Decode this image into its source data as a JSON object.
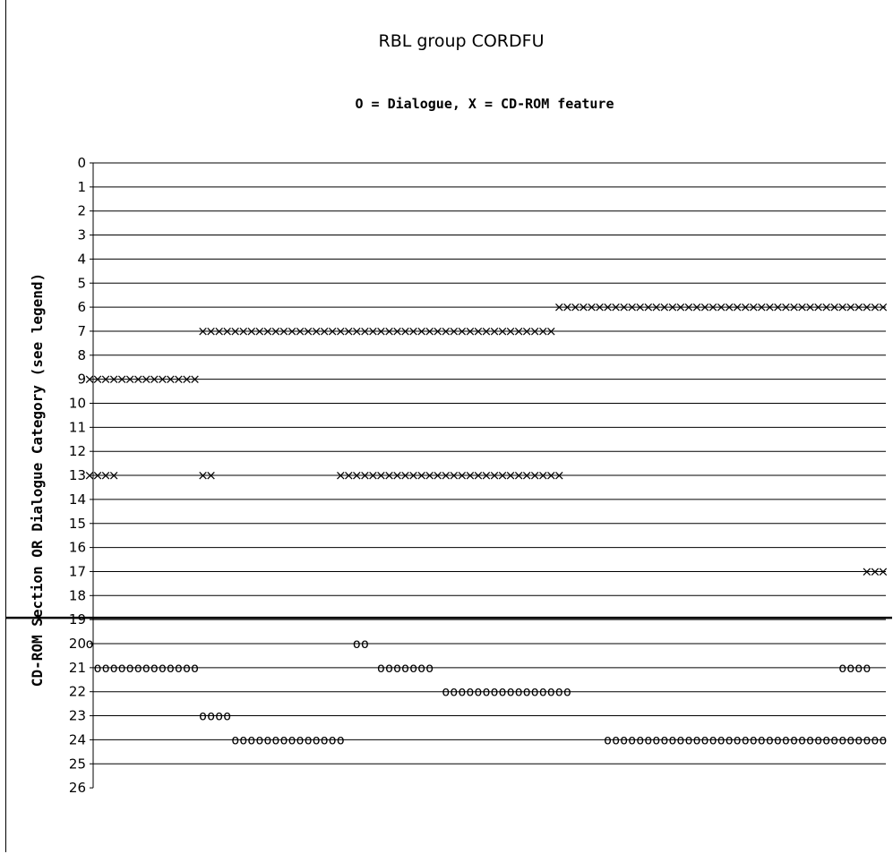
{
  "chart_data": {
    "type": "scatter",
    "title": "RBL group CORDFU",
    "subtitle": "O = Dialogue, X = CD-ROM feature",
    "ylabel": "CD-ROM Section OR Dialogue Category (see legend)",
    "xlabel": "",
    "y_reversed": true,
    "ylim": [
      0,
      26
    ],
    "yticks": [
      0,
      1,
      2,
      3,
      4,
      5,
      6,
      7,
      8,
      9,
      10,
      11,
      12,
      13,
      14,
      15,
      16,
      17,
      18,
      19,
      20,
      21,
      22,
      23,
      24,
      25,
      26
    ],
    "grid": true,
    "divider_y": 19,
    "xlim": [
      0,
      98
    ],
    "series": [
      {
        "name": "X = CD-ROM feature",
        "marker": "x",
        "points": [
          [
            0,
            9
          ],
          [
            1,
            9
          ],
          [
            2,
            9
          ],
          [
            3,
            9
          ],
          [
            4,
            9
          ],
          [
            5,
            9
          ],
          [
            6,
            9
          ],
          [
            7,
            9
          ],
          [
            8,
            9
          ],
          [
            9,
            9
          ],
          [
            10,
            9
          ],
          [
            11,
            9
          ],
          [
            12,
            9
          ],
          [
            13,
            9
          ],
          [
            14,
            7
          ],
          [
            15,
            7
          ],
          [
            16,
            7
          ],
          [
            17,
            7
          ],
          [
            18,
            7
          ],
          [
            19,
            7
          ],
          [
            20,
            7
          ],
          [
            21,
            7
          ],
          [
            22,
            7
          ],
          [
            23,
            7
          ],
          [
            24,
            7
          ],
          [
            25,
            7
          ],
          [
            26,
            7
          ],
          [
            27,
            7
          ],
          [
            28,
            7
          ],
          [
            29,
            7
          ],
          [
            30,
            7
          ],
          [
            31,
            7
          ],
          [
            32,
            7
          ],
          [
            33,
            7
          ],
          [
            34,
            7
          ],
          [
            35,
            7
          ],
          [
            36,
            7
          ],
          [
            37,
            7
          ],
          [
            38,
            7
          ],
          [
            39,
            7
          ],
          [
            40,
            7
          ],
          [
            41,
            7
          ],
          [
            42,
            7
          ],
          [
            43,
            7
          ],
          [
            44,
            7
          ],
          [
            45,
            7
          ],
          [
            46,
            7
          ],
          [
            47,
            7
          ],
          [
            48,
            7
          ],
          [
            49,
            7
          ],
          [
            50,
            7
          ],
          [
            51,
            7
          ],
          [
            52,
            7
          ],
          [
            53,
            7
          ],
          [
            54,
            7
          ],
          [
            55,
            7
          ],
          [
            56,
            7
          ],
          [
            57,
            7
          ],
          [
            58,
            6
          ],
          [
            59,
            6
          ],
          [
            60,
            6
          ],
          [
            61,
            6
          ],
          [
            62,
            6
          ],
          [
            63,
            6
          ],
          [
            64,
            6
          ],
          [
            65,
            6
          ],
          [
            66,
            6
          ],
          [
            67,
            6
          ],
          [
            68,
            6
          ],
          [
            69,
            6
          ],
          [
            70,
            6
          ],
          [
            71,
            6
          ],
          [
            72,
            6
          ],
          [
            73,
            6
          ],
          [
            74,
            6
          ],
          [
            75,
            6
          ],
          [
            76,
            6
          ],
          [
            77,
            6
          ],
          [
            78,
            6
          ],
          [
            79,
            6
          ],
          [
            80,
            6
          ],
          [
            81,
            6
          ],
          [
            82,
            6
          ],
          [
            83,
            6
          ],
          [
            84,
            6
          ],
          [
            85,
            6
          ],
          [
            86,
            6
          ],
          [
            87,
            6
          ],
          [
            88,
            6
          ],
          [
            89,
            6
          ],
          [
            90,
            6
          ],
          [
            91,
            6
          ],
          [
            92,
            6
          ],
          [
            93,
            6
          ],
          [
            94,
            6
          ],
          [
            95,
            6
          ],
          [
            96,
            6
          ],
          [
            97,
            6
          ],
          [
            98,
            6
          ],
          [
            0,
            13
          ],
          [
            1,
            13
          ],
          [
            2,
            13
          ],
          [
            3,
            13
          ],
          [
            14,
            13
          ],
          [
            15,
            13
          ],
          [
            31,
            13
          ],
          [
            32,
            13
          ],
          [
            33,
            13
          ],
          [
            34,
            13
          ],
          [
            35,
            13
          ],
          [
            36,
            13
          ],
          [
            37,
            13
          ],
          [
            38,
            13
          ],
          [
            39,
            13
          ],
          [
            40,
            13
          ],
          [
            41,
            13
          ],
          [
            42,
            13
          ],
          [
            43,
            13
          ],
          [
            44,
            13
          ],
          [
            45,
            13
          ],
          [
            46,
            13
          ],
          [
            47,
            13
          ],
          [
            48,
            13
          ],
          [
            49,
            13
          ],
          [
            50,
            13
          ],
          [
            51,
            13
          ],
          [
            52,
            13
          ],
          [
            53,
            13
          ],
          [
            54,
            13
          ],
          [
            55,
            13
          ],
          [
            56,
            13
          ],
          [
            57,
            13
          ],
          [
            58,
            13
          ],
          [
            96,
            17
          ],
          [
            97,
            17
          ],
          [
            98,
            17
          ]
        ]
      },
      {
        "name": "O = Dialogue",
        "marker": "o",
        "points": [
          [
            0,
            20
          ],
          [
            33,
            20
          ],
          [
            34,
            20
          ],
          [
            1,
            21
          ],
          [
            2,
            21
          ],
          [
            3,
            21
          ],
          [
            4,
            21
          ],
          [
            5,
            21
          ],
          [
            6,
            21
          ],
          [
            7,
            21
          ],
          [
            8,
            21
          ],
          [
            9,
            21
          ],
          [
            10,
            21
          ],
          [
            11,
            21
          ],
          [
            12,
            21
          ],
          [
            13,
            21
          ],
          [
            36,
            21
          ],
          [
            37,
            21
          ],
          [
            38,
            21
          ],
          [
            39,
            21
          ],
          [
            40,
            21
          ],
          [
            41,
            21
          ],
          [
            42,
            21
          ],
          [
            93,
            21
          ],
          [
            94,
            21
          ],
          [
            95,
            21
          ],
          [
            96,
            21
          ],
          [
            44,
            22
          ],
          [
            45,
            22
          ],
          [
            46,
            22
          ],
          [
            47,
            22
          ],
          [
            48,
            22
          ],
          [
            49,
            22
          ],
          [
            50,
            22
          ],
          [
            51,
            22
          ],
          [
            52,
            22
          ],
          [
            53,
            22
          ],
          [
            54,
            22
          ],
          [
            55,
            22
          ],
          [
            56,
            22
          ],
          [
            57,
            22
          ],
          [
            58,
            22
          ],
          [
            59,
            22
          ],
          [
            14,
            23
          ],
          [
            15,
            23
          ],
          [
            16,
            23
          ],
          [
            17,
            23
          ],
          [
            18,
            24
          ],
          [
            19,
            24
          ],
          [
            20,
            24
          ],
          [
            21,
            24
          ],
          [
            22,
            24
          ],
          [
            23,
            24
          ],
          [
            24,
            24
          ],
          [
            25,
            24
          ],
          [
            26,
            24
          ],
          [
            27,
            24
          ],
          [
            28,
            24
          ],
          [
            29,
            24
          ],
          [
            30,
            24
          ],
          [
            31,
            24
          ],
          [
            64,
            24
          ],
          [
            65,
            24
          ],
          [
            66,
            24
          ],
          [
            67,
            24
          ],
          [
            68,
            24
          ],
          [
            69,
            24
          ],
          [
            70,
            24
          ],
          [
            71,
            24
          ],
          [
            72,
            24
          ],
          [
            73,
            24
          ],
          [
            74,
            24
          ],
          [
            75,
            24
          ],
          [
            76,
            24
          ],
          [
            77,
            24
          ],
          [
            78,
            24
          ],
          [
            79,
            24
          ],
          [
            80,
            24
          ],
          [
            81,
            24
          ],
          [
            82,
            24
          ],
          [
            83,
            24
          ],
          [
            84,
            24
          ],
          [
            85,
            24
          ],
          [
            86,
            24
          ],
          [
            87,
            24
          ],
          [
            88,
            24
          ],
          [
            89,
            24
          ],
          [
            90,
            24
          ],
          [
            91,
            24
          ],
          [
            92,
            24
          ],
          [
            93,
            24
          ],
          [
            94,
            24
          ],
          [
            95,
            24
          ],
          [
            96,
            24
          ],
          [
            97,
            24
          ],
          [
            98,
            24
          ]
        ]
      }
    ]
  }
}
